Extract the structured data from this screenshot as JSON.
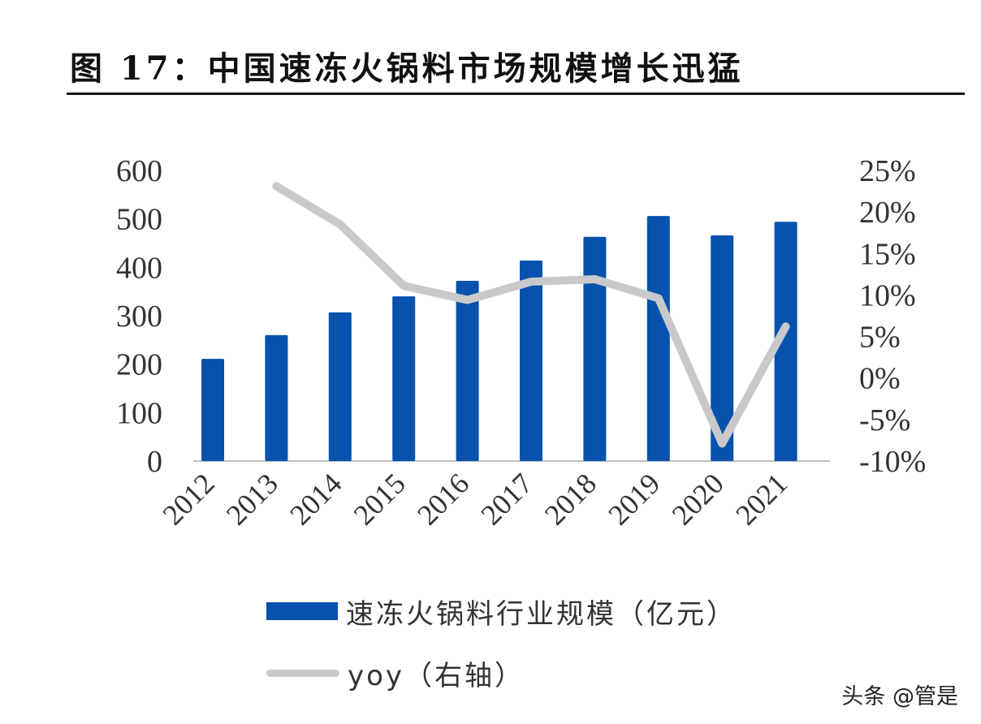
{
  "figure": {
    "title": "图 17：中国速冻火锅料市场规模增长迅猛"
  },
  "colors": {
    "bar": "#0652AC",
    "line": "#C9C9CB",
    "axis": "#BFBFBF",
    "text": "#333333"
  },
  "legend": {
    "bar_label": "速冻火锅料行业规模（亿元）",
    "line_label": "yoy（右轴）"
  },
  "watermark": "头条 @管是",
  "chart_data": {
    "type": "bar",
    "title": "图 17：中国速冻火锅料市场规模增长迅猛",
    "xlabel": "",
    "ylabel": "",
    "categories": [
      "2012",
      "2013",
      "2014",
      "2015",
      "2016",
      "2017",
      "2018",
      "2019",
      "2020",
      "2021"
    ],
    "series": [
      {
        "name": "速冻火锅料行业规模（亿元）",
        "type": "bar",
        "axis": "left",
        "values": [
          211,
          260,
          307,
          340,
          372,
          414,
          463,
          506,
          466,
          494
        ]
      },
      {
        "name": "yoy（右轴）",
        "type": "line",
        "axis": "right",
        "unit": "%",
        "values": [
          null,
          23.1,
          18.5,
          11.1,
          9.4,
          11.6,
          11.9,
          9.6,
          -7.9,
          6.2
        ]
      }
    ],
    "ylim": [
      0,
      600
    ],
    "y_ticks": [
      "0",
      "100",
      "200",
      "300",
      "400",
      "500",
      "600"
    ],
    "y2lim": [
      -10,
      25
    ],
    "y2_ticks": [
      "-10%",
      "-5%",
      "0%",
      "5%",
      "10%",
      "15%",
      "20%",
      "25%"
    ],
    "grid": false,
    "legend_position": "bottom"
  }
}
